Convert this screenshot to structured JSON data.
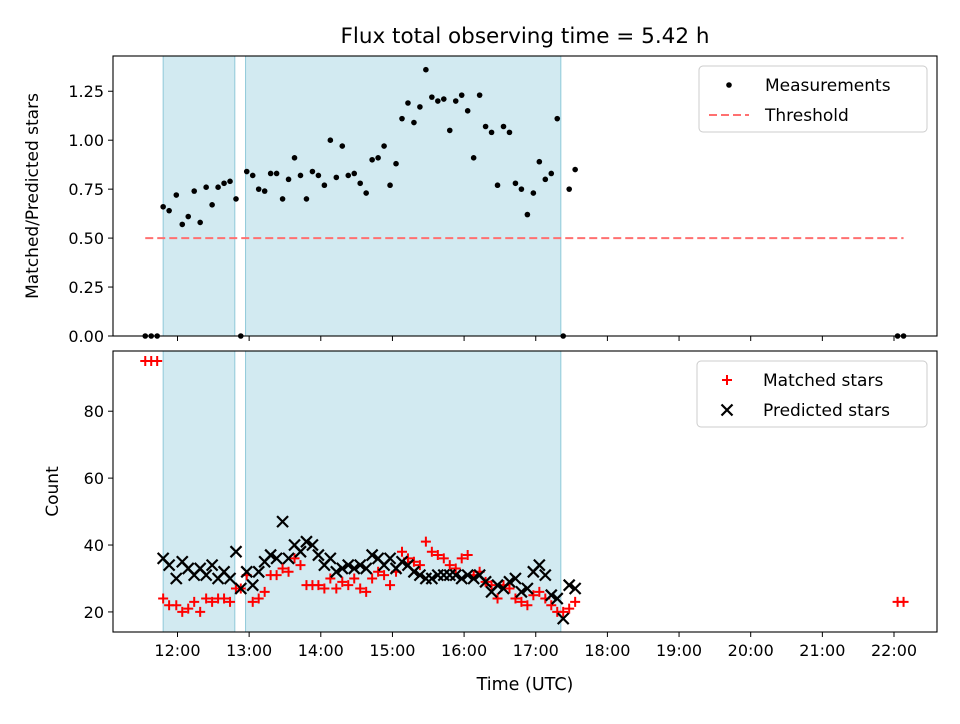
{
  "chart_data": {
    "title": "Flux total observing time = 5.42 h",
    "xlabel": "Time (UTC)",
    "x_unit": "hours UTC",
    "xlim": [
      "11:06",
      "22:36"
    ],
    "x_ticks": [
      "12:00",
      "13:00",
      "14:00",
      "15:00",
      "16:00",
      "17:00",
      "18:00",
      "19:00",
      "20:00",
      "21:00",
      "22:00"
    ],
    "observing_windows": [
      {
        "start": "11:48",
        "end": "12:48"
      },
      {
        "start": "12:57",
        "end": "17:21"
      }
    ],
    "window_color": "#add8e6",
    "panels": [
      {
        "type": "scatter",
        "ylabel": "Matched/Predicted stars",
        "ylim": [
          0,
          1.43
        ],
        "y_ticks": [
          "0.00",
          "0.25",
          "0.50",
          "0.75",
          "1.00",
          "1.25"
        ],
        "legend": [
          "Measurements",
          "Threshold"
        ],
        "legend_position": "top-right",
        "series": [
          {
            "name": "Measurements",
            "marker": "dot",
            "color": "#000000",
            "x": [
              "11:33",
              "11:38",
              "11:43",
              "11:48",
              "11:53",
              "11:59",
              "12:04",
              "12:09",
              "12:14",
              "12:19",
              "12:24",
              "12:29",
              "12:34",
              "12:39",
              "12:44",
              "12:49",
              "12:53",
              "12:58",
              "13:03",
              "13:08",
              "13:13",
              "13:18",
              "13:23",
              "13:28",
              "13:33",
              "13:38",
              "13:43",
              "13:48",
              "13:53",
              "13:58",
              "14:03",
              "14:08",
              "14:13",
              "14:18",
              "14:23",
              "14:28",
              "14:33",
              "14:38",
              "14:43",
              "14:48",
              "14:53",
              "14:58",
              "15:03",
              "15:08",
              "15:13",
              "15:18",
              "15:23",
              "15:28",
              "15:33",
              "15:38",
              "15:43",
              "15:48",
              "15:53",
              "15:58",
              "16:03",
              "16:08",
              "16:13",
              "16:18",
              "16:23",
              "16:28",
              "16:33",
              "16:38",
              "16:43",
              "16:48",
              "16:53",
              "16:58",
              "17:03",
              "17:08",
              "17:13",
              "17:18",
              "17:23",
              "17:28",
              "17:33",
              "22:03",
              "22:08"
            ],
            "y": [
              0.0,
              0.0,
              0.0,
              0.66,
              0.64,
              0.72,
              0.57,
              0.61,
              0.74,
              0.58,
              0.76,
              0.67,
              0.76,
              0.78,
              0.79,
              0.7,
              0.0,
              0.84,
              0.82,
              0.75,
              0.74,
              0.83,
              0.83,
              0.7,
              0.8,
              0.91,
              0.82,
              0.7,
              0.84,
              0.82,
              0.77,
              1.0,
              0.81,
              0.97,
              0.82,
              0.83,
              0.78,
              0.73,
              0.9,
              0.91,
              0.97,
              0.77,
              0.88,
              1.11,
              1.19,
              1.09,
              1.17,
              1.36,
              1.22,
              1.2,
              1.21,
              1.05,
              1.2,
              1.23,
              1.15,
              0.91,
              1.23,
              1.07,
              1.04,
              0.77,
              1.07,
              1.04,
              0.78,
              0.75,
              0.62,
              0.73,
              0.89,
              0.8,
              0.83,
              1.11,
              0.0,
              0.75,
              0.85,
              0.0,
              0.0
            ]
          },
          {
            "name": "Threshold",
            "type": "line",
            "style": "dashed",
            "color": "#ff7070",
            "x": [
              "11:33",
              "22:08"
            ],
            "y": [
              0.5,
              0.5
            ]
          }
        ]
      },
      {
        "type": "scatter",
        "ylabel": "Count",
        "ylim": [
          14,
          98
        ],
        "y_ticks": [
          "20",
          "40",
          "60",
          "80"
        ],
        "legend": [
          "Matched stars",
          "Predicted stars"
        ],
        "legend_position": "top-right",
        "series": [
          {
            "name": "Matched stars",
            "marker": "plus",
            "color": "#ff0000",
            "x": [
              "11:33",
              "11:38",
              "11:43",
              "11:48",
              "11:53",
              "11:59",
              "12:04",
              "12:09",
              "12:14",
              "12:19",
              "12:24",
              "12:29",
              "12:34",
              "12:39",
              "12:44",
              "12:49",
              "12:53",
              "12:58",
              "13:03",
              "13:08",
              "13:13",
              "13:18",
              "13:23",
              "13:28",
              "13:33",
              "13:38",
              "13:43",
              "13:48",
              "13:53",
              "13:58",
              "14:03",
              "14:08",
              "14:13",
              "14:18",
              "14:23",
              "14:28",
              "14:33",
              "14:38",
              "14:43",
              "14:48",
              "14:53",
              "14:58",
              "15:03",
              "15:08",
              "15:13",
              "15:18",
              "15:23",
              "15:28",
              "15:33",
              "15:38",
              "15:43",
              "15:48",
              "15:53",
              "15:58",
              "16:03",
              "16:08",
              "16:13",
              "16:18",
              "16:23",
              "16:28",
              "16:33",
              "16:38",
              "16:43",
              "16:48",
              "16:53",
              "16:58",
              "17:03",
              "17:08",
              "17:13",
              "17:18",
              "17:23",
              "17:28",
              "17:33",
              "22:03",
              "22:08"
            ],
            "y": [
              95,
              95,
              95,
              24,
              22,
              22,
              20,
              21,
              23,
              20,
              24,
              23,
              24,
              24,
              23,
              27,
              27,
              31,
              23,
              24,
              26,
              31,
              31,
              33,
              32,
              36,
              34,
              28,
              28,
              28,
              27,
              30,
              27,
              29,
              28,
              30,
              27,
              26,
              30,
              32,
              31,
              28,
              32,
              38,
              36,
              35,
              34,
              41,
              38,
              37,
              36,
              34,
              33,
              36,
              37,
              31,
              32,
              29,
              28,
              24,
              28,
              27,
              24,
              23,
              22,
              25,
              26,
              24,
              22,
              20,
              20,
              21,
              23,
              23,
              23
            ]
          },
          {
            "name": "Predicted stars",
            "marker": "x",
            "color": "#000000",
            "x": [
              "11:48",
              "11:53",
              "11:59",
              "12:04",
              "12:09",
              "12:14",
              "12:19",
              "12:24",
              "12:29",
              "12:34",
              "12:39",
              "12:44",
              "12:49",
              "12:53",
              "12:58",
              "13:03",
              "13:08",
              "13:13",
              "13:18",
              "13:23",
              "13:28",
              "13:33",
              "13:38",
              "13:43",
              "13:48",
              "13:53",
              "13:58",
              "14:03",
              "14:08",
              "14:13",
              "14:18",
              "14:23",
              "14:28",
              "14:33",
              "14:38",
              "14:43",
              "14:48",
              "14:53",
              "14:58",
              "15:03",
              "15:08",
              "15:13",
              "15:18",
              "15:23",
              "15:28",
              "15:33",
              "15:38",
              "15:43",
              "15:48",
              "15:53",
              "15:58",
              "16:03",
              "16:08",
              "16:13",
              "16:18",
              "16:23",
              "16:28",
              "16:33",
              "16:38",
              "16:43",
              "16:48",
              "16:53",
              "16:58",
              "17:03",
              "17:08",
              "17:13",
              "17:18",
              "17:23",
              "17:28",
              "17:33"
            ],
            "y": [
              36,
              34,
              30,
              35,
              33,
              31,
              33,
              31,
              34,
              30,
              32,
              30,
              38,
              27,
              32,
              28,
              32,
              35,
              37,
              36,
              47,
              36,
              40,
              38,
              41,
              40,
              37,
              34,
              36,
              32,
              33,
              34,
              33,
              34,
              33,
              37,
              36,
              34,
              36,
              33,
              35,
              34,
              32,
              31,
              30,
              30,
              31,
              31,
              31,
              31,
              30,
              31,
              30,
              31,
              29,
              26,
              28,
              27,
              29,
              30,
              26,
              27,
              32,
              34,
              31,
              25,
              24,
              18,
              28,
              27
            ]
          }
        ]
      }
    ]
  }
}
